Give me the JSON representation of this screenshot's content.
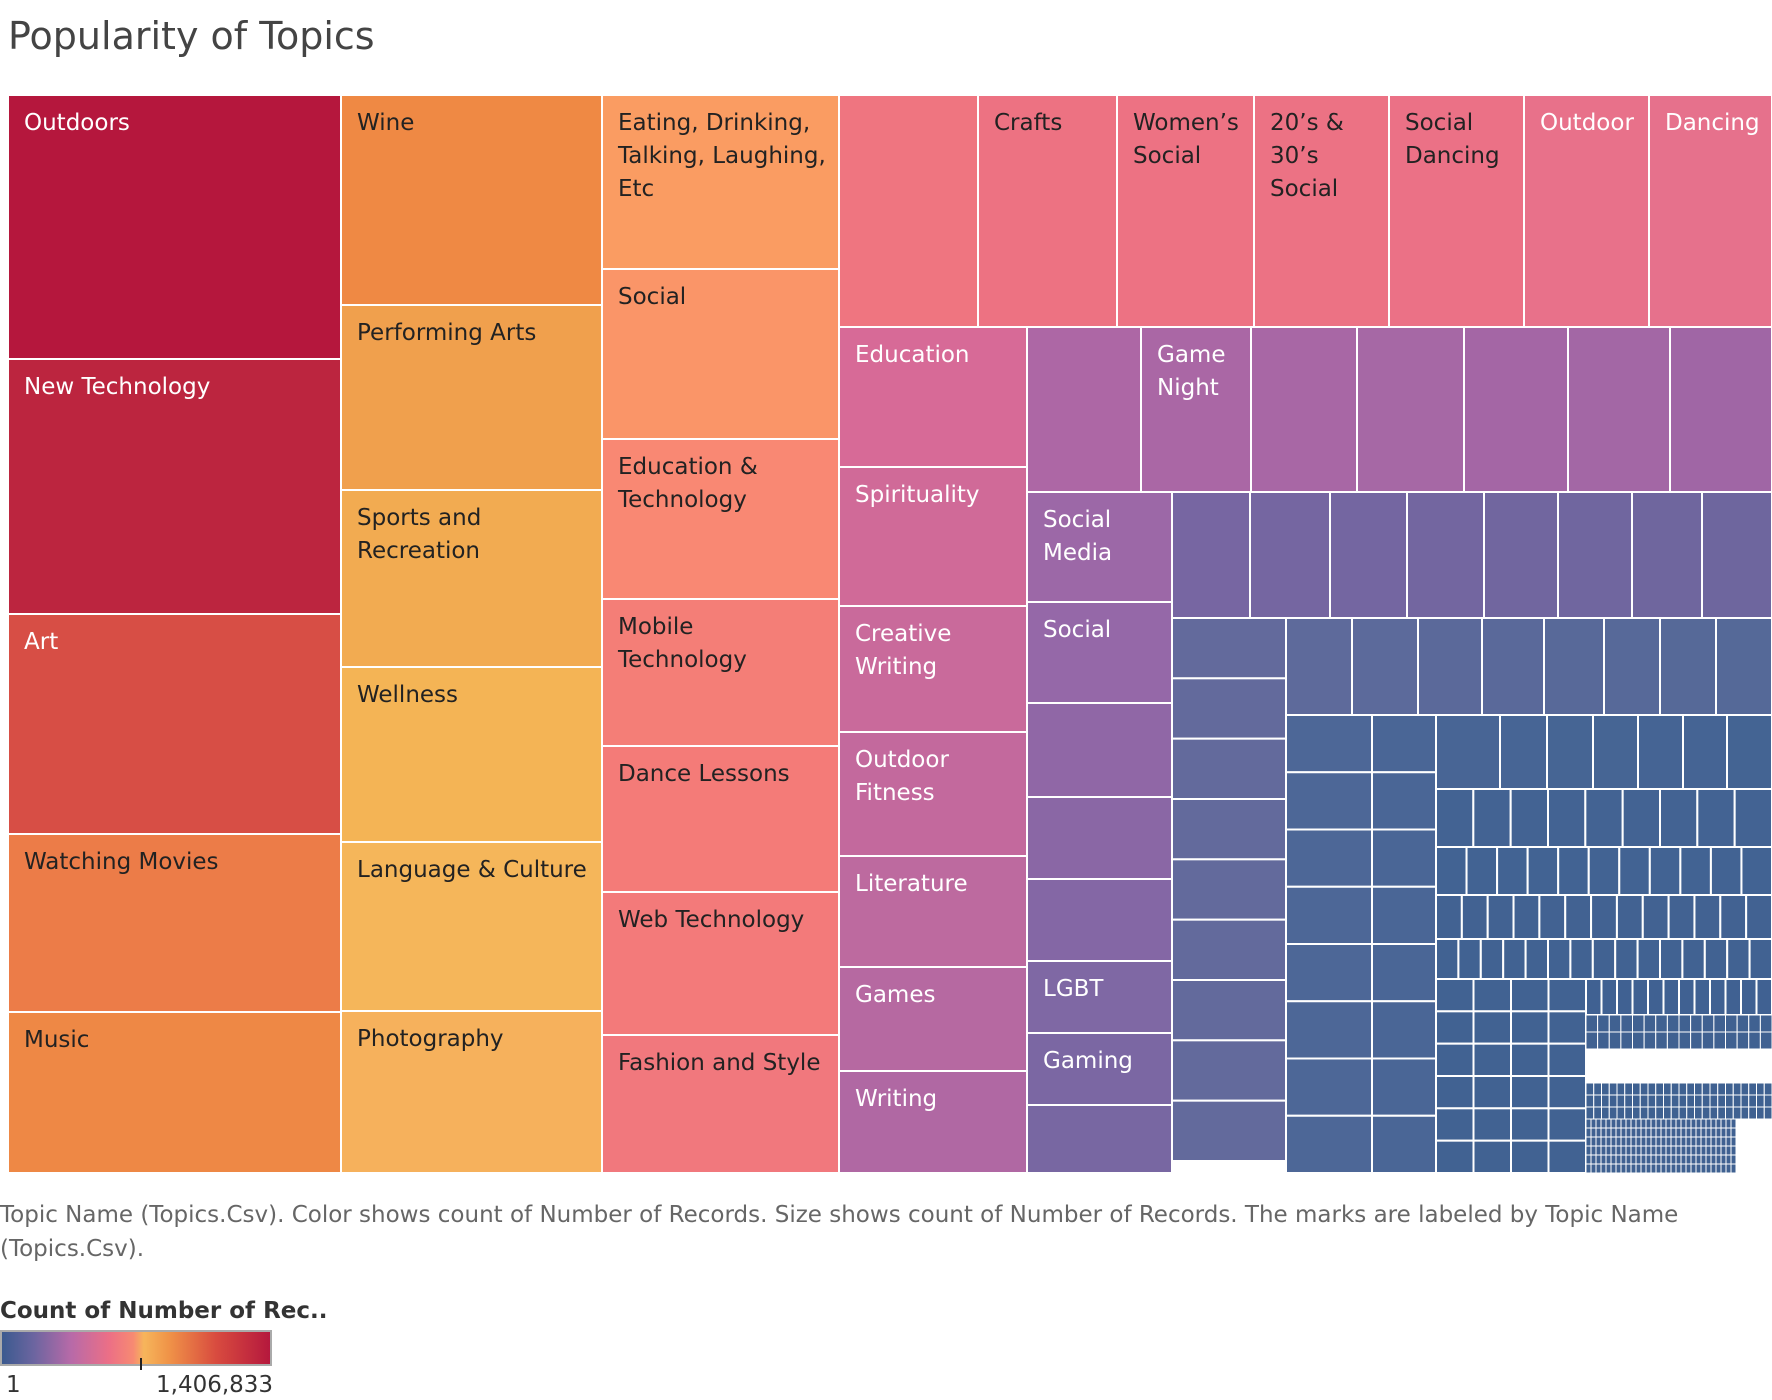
{
  "title": "Popularity of Topics",
  "caption": "Topic Name (Topics.Csv).  Color shows count of Number of Records.  Size shows count of Number of Records.  The marks are labeled by Topic Name (Topics.Csv).",
  "legend": {
    "title": "Count of Number of Rec..",
    "min_label": "1",
    "max_label": "1,406,833"
  },
  "chart_data": {
    "type": "treemap",
    "size_measure": "count of Number of Records",
    "color_measure": "count of Number of Records",
    "color_range": [
      1,
      1406833
    ],
    "color_scale": [
      "#3b5a8f",
      "#6c65a0",
      "#b86aa8",
      "#ec6f86",
      "#f78a72",
      "#f6b55b",
      "#f09448",
      "#d84b3f",
      "#b5183d"
    ],
    "labeled_topics": [
      "Outdoors",
      "New Technology",
      "Art",
      "Watching Movies",
      "Music",
      "Wine",
      "Performing Arts",
      "Sports and Recreation",
      "Wellness",
      "Language & Culture",
      "Photography",
      "Eating, Drinking, Talking, Laughing, Etc",
      "Social",
      "Education & Technology",
      "Mobile Technology",
      "Dance Lessons",
      "Web Technology",
      "Fashion and Style",
      "Crafts",
      "Women’s Social",
      "20’s & 30’s Social",
      "Social Dancing",
      "Outdoor",
      "Dancing",
      "Education",
      "Spirituality",
      "Creative Writing",
      "Outdoor Fitness",
      "Literature",
      "Games",
      "Writing",
      "Game Night",
      "Social Media",
      "Social",
      "LGBT",
      "Gaming"
    ]
  }
}
